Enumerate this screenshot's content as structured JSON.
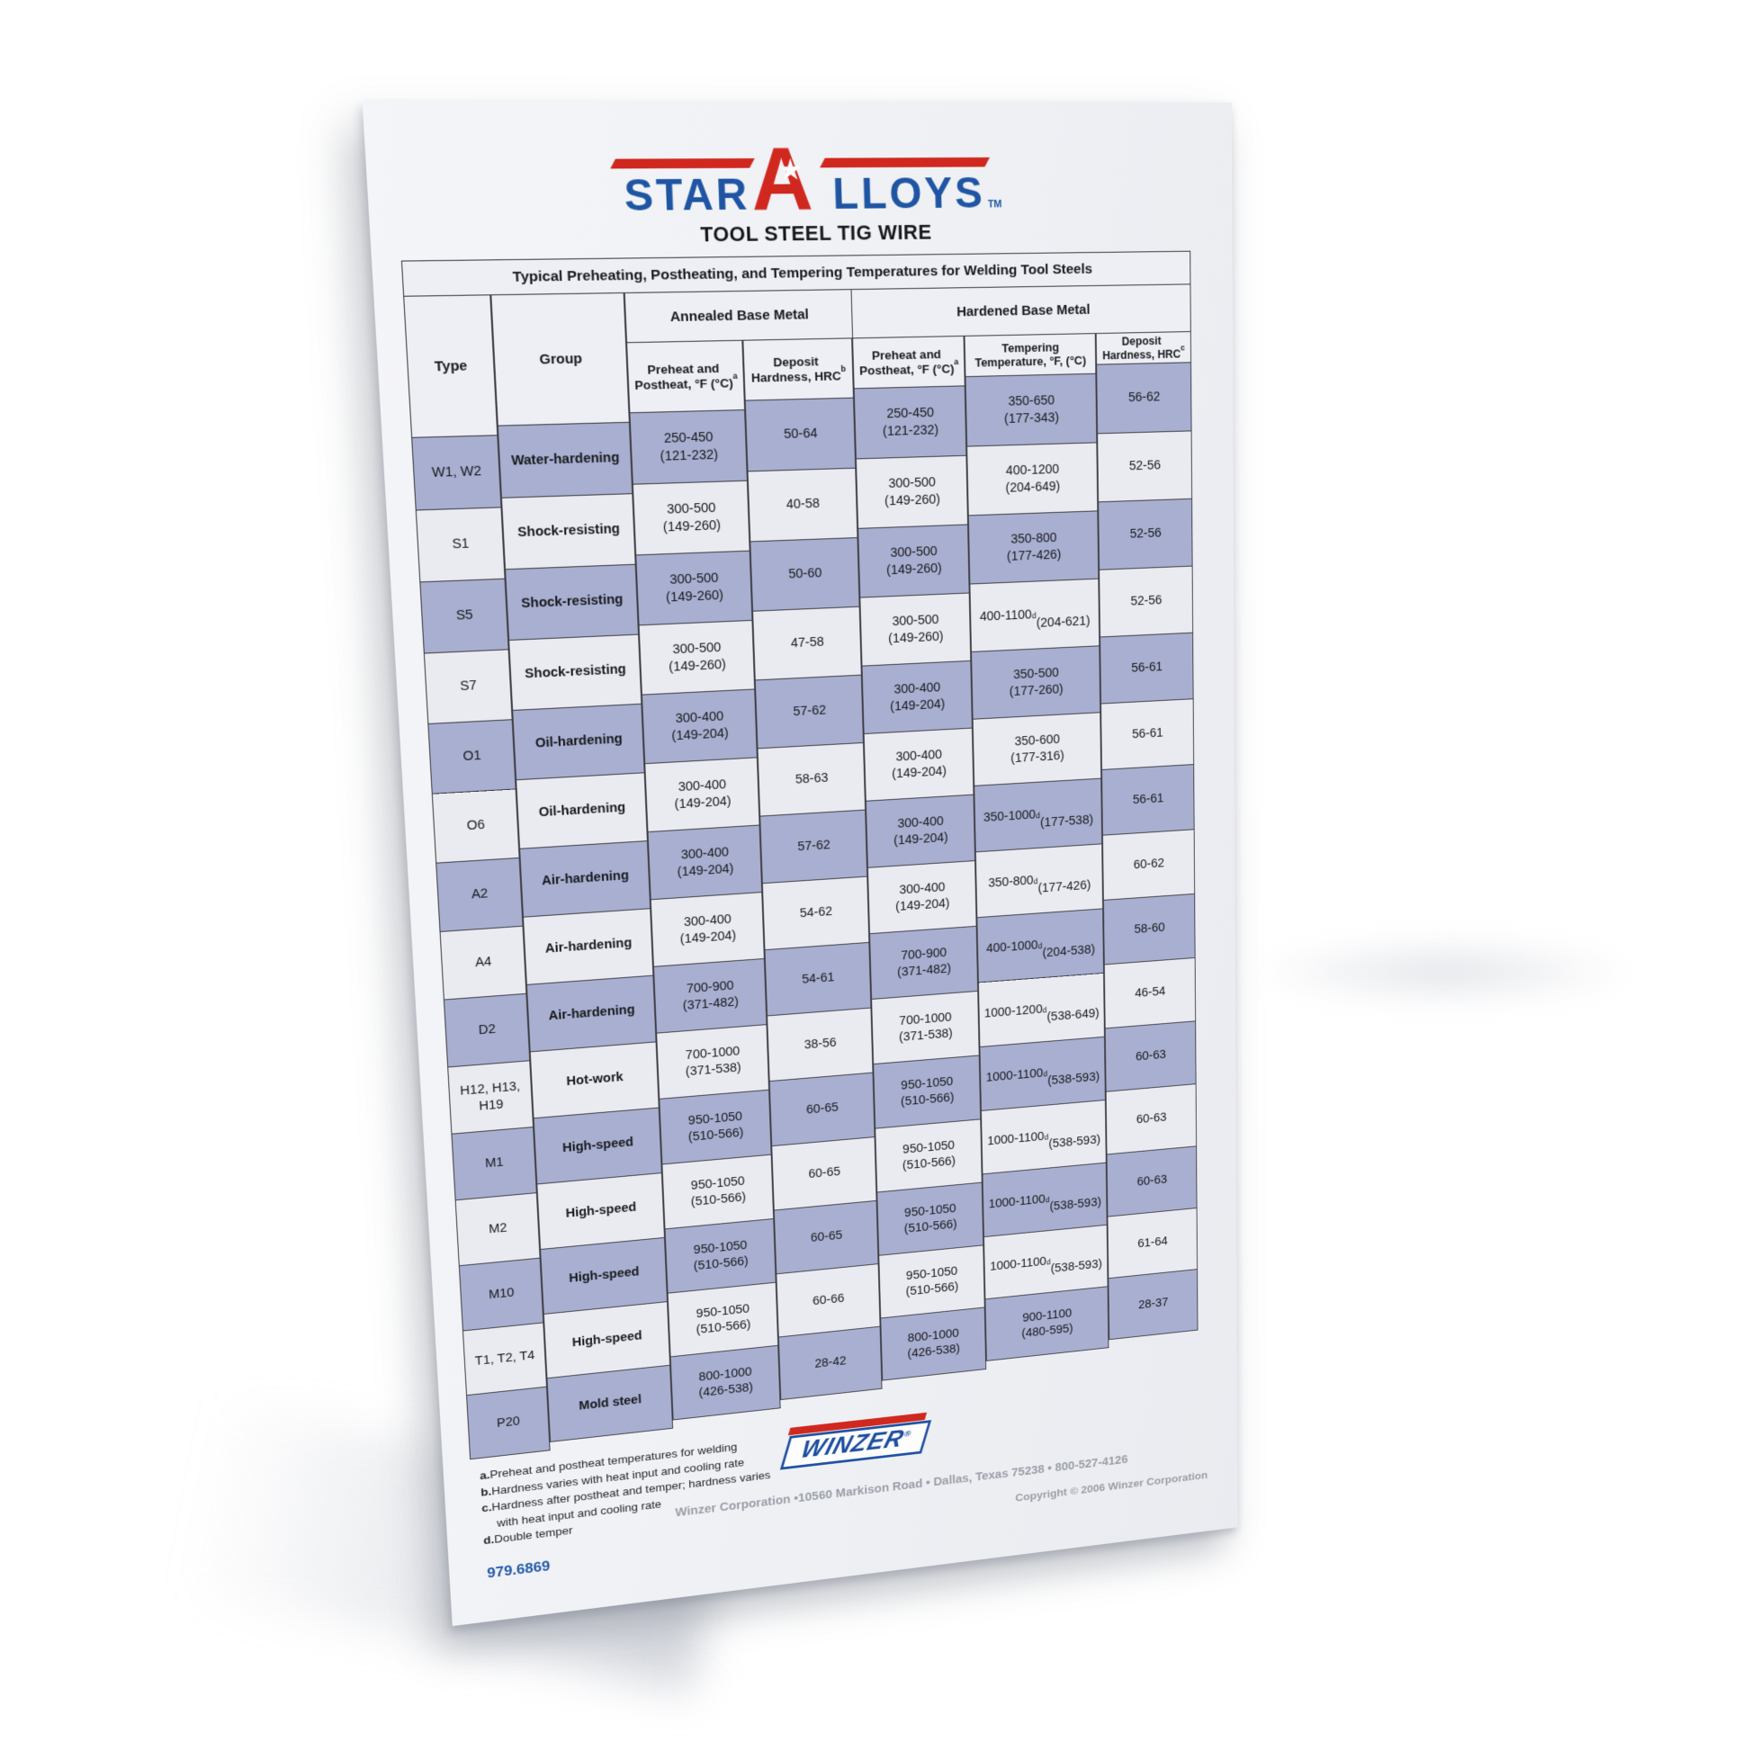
{
  "brand": {
    "logo_star": "STAR",
    "logo_a": "A",
    "logo_loys": "LLOYS",
    "tm": "TM",
    "subtitle": "TOOL STEEL TIG WIRE"
  },
  "table": {
    "caption": "Typical Preheating, Postheating, and Tempering Temperatures for Welding Tool Steels",
    "col_type": "Type",
    "col_group": "Group",
    "annealed_header": "Annealed Base Metal",
    "hardened_header": "Hardened Base Metal",
    "sub_a_preheat": "Preheat and\nPostheat, °F (°C)^a",
    "sub_a_deposit": "Deposit\nHardness, HRC^b",
    "sub_h_preheat": "Preheat and\nPostheat, °F (°C)^a",
    "sub_h_tempering": "Tempering\nTemperature, °F, (°C)",
    "sub_h_deposit": "Deposit\nHardness, HRC^c",
    "rows": [
      {
        "type": "W1, W2",
        "group": "Water-hardening",
        "annealed_preheat": "250-450\n(121-232)",
        "annealed_hardness": "50-64",
        "hardened_preheat": "250-450\n(121-232)",
        "tempering": "350-650\n(177-343)",
        "hardened_hardness": "56-62"
      },
      {
        "type": "S1",
        "group": "Shock-resisting",
        "annealed_preheat": "300-500\n(149-260)",
        "annealed_hardness": "40-58",
        "hardened_preheat": "300-500\n(149-260)",
        "tempering": "400-1200\n(204-649)",
        "hardened_hardness": "52-56"
      },
      {
        "type": "S5",
        "group": "Shock-resisting",
        "annealed_preheat": "300-500\n(149-260)",
        "annealed_hardness": "50-60",
        "hardened_preheat": "300-500\n(149-260)",
        "tempering": "350-800\n(177-426)",
        "hardened_hardness": "52-56"
      },
      {
        "type": "S7",
        "group": "Shock-resisting",
        "annealed_preheat": "300-500\n(149-260)",
        "annealed_hardness": "47-58",
        "hardened_preheat": "300-500\n(149-260)",
        "tempering": "400-1100^d\n(204-621)",
        "hardened_hardness": "52-56"
      },
      {
        "type": "O1",
        "group": "Oil-hardening",
        "annealed_preheat": "300-400\n(149-204)",
        "annealed_hardness": "57-62",
        "hardened_preheat": "300-400\n(149-204)",
        "tempering": "350-500\n(177-260)",
        "hardened_hardness": "56-61"
      },
      {
        "type": "O6",
        "group": "Oil-hardening",
        "annealed_preheat": "300-400\n(149-204)",
        "annealed_hardness": "58-63",
        "hardened_preheat": "300-400\n(149-204)",
        "tempering": "350-600\n(177-316)",
        "hardened_hardness": "56-61"
      },
      {
        "type": "A2",
        "group": "Air-hardening",
        "annealed_preheat": "300-400\n(149-204)",
        "annealed_hardness": "57-62",
        "hardened_preheat": "300-400\n(149-204)",
        "tempering": "350-1000^d\n(177-538)",
        "hardened_hardness": "56-61"
      },
      {
        "type": "A4",
        "group": "Air-hardening",
        "annealed_preheat": "300-400\n(149-204)",
        "annealed_hardness": "54-62",
        "hardened_preheat": "300-400\n(149-204)",
        "tempering": "350-800^d\n(177-426)",
        "hardened_hardness": "60-62"
      },
      {
        "type": "D2",
        "group": "Air-hardening",
        "annealed_preheat": "700-900\n(371-482)",
        "annealed_hardness": "54-61",
        "hardened_preheat": "700-900\n(371-482)",
        "tempering": "400-1000^d\n(204-538)",
        "hardened_hardness": "58-60"
      },
      {
        "type": "H12, H13,\nH19",
        "group": "Hot-work",
        "annealed_preheat": "700-1000\n(371-538)",
        "annealed_hardness": "38-56",
        "hardened_preheat": "700-1000\n(371-538)",
        "tempering": "1000-1200^d\n(538-649)",
        "hardened_hardness": "46-54"
      },
      {
        "type": "M1",
        "group": "High-speed",
        "annealed_preheat": "950-1050\n(510-566)",
        "annealed_hardness": "60-65",
        "hardened_preheat": "950-1050\n(510-566)",
        "tempering": "1000-1100^d\n(538-593)",
        "hardened_hardness": "60-63"
      },
      {
        "type": "M2",
        "group": "High-speed",
        "annealed_preheat": "950-1050\n(510-566)",
        "annealed_hardness": "60-65",
        "hardened_preheat": "950-1050\n(510-566)",
        "tempering": "1000-1100^d\n(538-593)",
        "hardened_hardness": "60-63"
      },
      {
        "type": "M10",
        "group": "High-speed",
        "annealed_preheat": "950-1050\n(510-566)",
        "annealed_hardness": "60-65",
        "hardened_preheat": "950-1050\n(510-566)",
        "tempering": "1000-1100^d\n(538-593)",
        "hardened_hardness": "60-63"
      },
      {
        "type": "T1, T2, T4",
        "group": "High-speed",
        "annealed_preheat": "950-1050\n(510-566)",
        "annealed_hardness": "60-66",
        "hardened_preheat": "950-1050\n(510-566)",
        "tempering": "1000-1100^d\n(538-593)",
        "hardened_hardness": "61-64"
      },
      {
        "type": "P20",
        "group": "Mold steel",
        "annealed_preheat": "800-1000\n(426-538)",
        "annealed_hardness": "28-42",
        "hardened_preheat": "800-1000\n(426-538)",
        "tempering": "900-1100\n(480-595)",
        "hardened_hardness": "28-37"
      }
    ]
  },
  "footnotes": [
    {
      "key": "a.",
      "text": "Preheat and postheat temperatures for welding"
    },
    {
      "key": "b.",
      "text": "Hardness varies with heat input and cooling rate"
    },
    {
      "key": "c.",
      "text": "Hardness after postheat and temper; hardness varies with heat input and cooling rate"
    },
    {
      "key": "d.",
      "text": "Double temper"
    }
  ],
  "footer": {
    "winzer": "WINZER",
    "reg": "®",
    "address": "Winzer Corporation •10560 Markison Road • Dallas, Texas 75238 • 800-527-4126",
    "copyright": "Copyright © 2006 Winzer Corporation",
    "part_number": "979.6869"
  },
  "colors": {
    "logo_blue": "#1f55a3",
    "logo_red": "#d0281f",
    "row_lavender": "#a8afd0",
    "row_light": "#e9ebf1",
    "border": "#3e3e44",
    "footer_gray": "#9a9ea6",
    "part_number_blue": "#2257a8"
  }
}
